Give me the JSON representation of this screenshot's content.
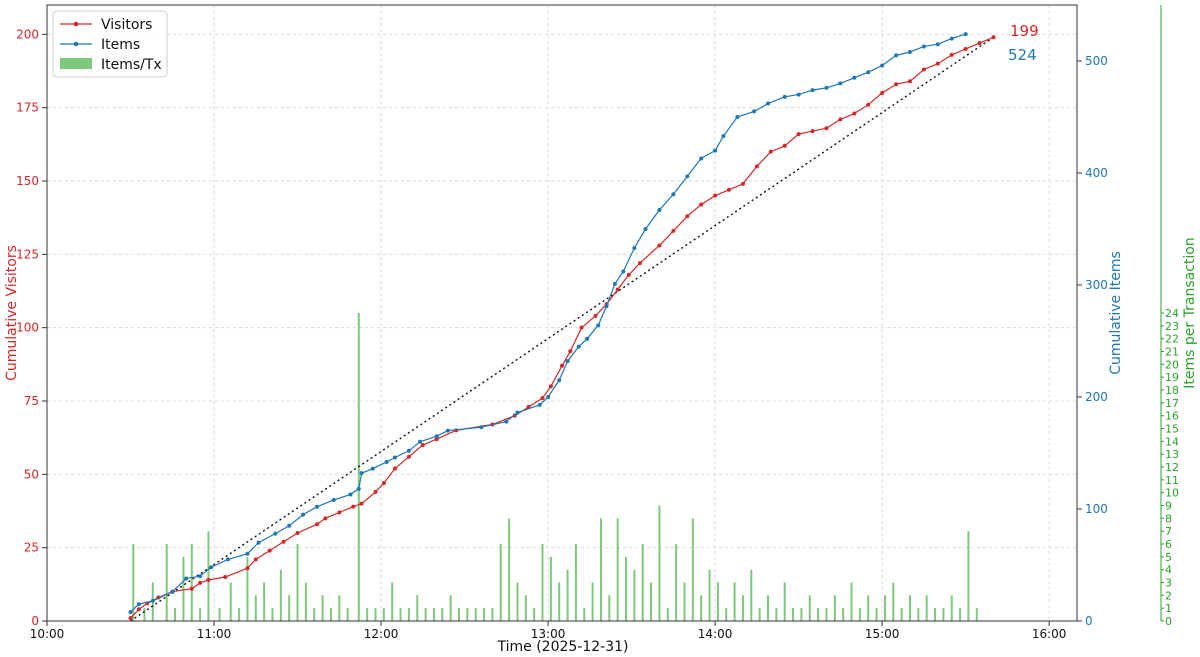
{
  "chart_data": {
    "type": "line",
    "x_axis": {
      "label": "Time (2025-12-31)",
      "range": [
        "10:00",
        "16:10"
      ],
      "ticks": [
        "10:00",
        "11:00",
        "12:00",
        "13:00",
        "14:00",
        "15:00",
        "16:00"
      ],
      "grid": true
    },
    "y_axes": {
      "left": {
        "label": "Cumulative Visitors",
        "range": [
          0,
          210
        ],
        "ticks": [
          0,
          25,
          50,
          75,
          100,
          125,
          150,
          175,
          200
        ],
        "color": "#d62728"
      },
      "right": {
        "label": "Cumulative Items",
        "range": [
          0,
          550
        ],
        "ticks": [
          0,
          100,
          200,
          300,
          400,
          500
        ],
        "color": "#1f77b4"
      },
      "far_right": {
        "label": "Items per Transaction",
        "range": [
          0,
          48
        ],
        "ticks": [
          0,
          1,
          2,
          3,
          4,
          5,
          6,
          7,
          8,
          9,
          10,
          11,
          12,
          13,
          14,
          15,
          16,
          17,
          18,
          19,
          20,
          21,
          22,
          23,
          24
        ],
        "color": "#2ca02c"
      }
    },
    "legend": {
      "position": "top-left",
      "entries": [
        {
          "label": "Visitors",
          "color": "#d62728",
          "kind": "line-marker"
        },
        {
          "label": "Items",
          "color": "#1f77b4",
          "kind": "line-marker"
        },
        {
          "label": "Items/Tx",
          "color": "#7cc87c",
          "kind": "bar"
        }
      ]
    },
    "end_labels": {
      "visitors": "199",
      "items": "524"
    },
    "series": [
      {
        "name": "Visitors",
        "axis": "left",
        "color": "#d62728",
        "points": [
          [
            "10:30",
            1
          ],
          [
            "10:33",
            4
          ],
          [
            "10:36",
            6
          ],
          [
            "10:40",
            8
          ],
          [
            "10:45",
            10
          ],
          [
            "10:52",
            11
          ],
          [
            "10:55",
            13
          ],
          [
            "10:58",
            14
          ],
          [
            "11:04",
            15
          ],
          [
            "11:12",
            18
          ],
          [
            "11:15",
            21
          ],
          [
            "11:20",
            24
          ],
          [
            "11:25",
            27
          ],
          [
            "11:30",
            30
          ],
          [
            "11:37",
            33
          ],
          [
            "11:40",
            35
          ],
          [
            "11:45",
            37
          ],
          [
            "11:50",
            39
          ],
          [
            "11:53",
            40
          ],
          [
            "11:58",
            44
          ],
          [
            "12:01",
            47
          ],
          [
            "12:05",
            52
          ],
          [
            "12:10",
            56
          ],
          [
            "12:15",
            60
          ],
          [
            "12:20",
            62
          ],
          [
            "12:27",
            65
          ],
          [
            "12:40",
            67
          ],
          [
            "12:48",
            70
          ],
          [
            "12:53",
            73
          ],
          [
            "12:58",
            76
          ],
          [
            "13:01",
            80
          ],
          [
            "13:05",
            87
          ],
          [
            "13:08",
            92
          ],
          [
            "13:12",
            100
          ],
          [
            "13:17",
            104
          ],
          [
            "13:21",
            108
          ],
          [
            "13:25",
            113
          ],
          [
            "13:29",
            118
          ],
          [
            "13:33",
            122
          ],
          [
            "13:40",
            128
          ],
          [
            "13:45",
            133
          ],
          [
            "13:50",
            138
          ],
          [
            "13:55",
            142
          ],
          [
            "14:00",
            145
          ],
          [
            "14:05",
            147
          ],
          [
            "14:10",
            149
          ],
          [
            "14:15",
            155
          ],
          [
            "14:20",
            160
          ],
          [
            "14:25",
            162
          ],
          [
            "14:30",
            166
          ],
          [
            "14:35",
            167
          ],
          [
            "14:40",
            168
          ],
          [
            "14:45",
            171
          ],
          [
            "14:50",
            173
          ],
          [
            "14:55",
            176
          ],
          [
            "15:00",
            180
          ],
          [
            "15:05",
            183
          ],
          [
            "15:10",
            184
          ],
          [
            "15:15",
            188
          ],
          [
            "15:20",
            190
          ],
          [
            "15:25",
            193
          ],
          [
            "15:30",
            195
          ],
          [
            "15:35",
            197
          ],
          [
            "15:40",
            199
          ]
        ]
      },
      {
        "name": "Items",
        "axis": "right",
        "color": "#1f77b4",
        "points": [
          [
            "10:30",
            8
          ],
          [
            "10:33",
            15
          ],
          [
            "10:38",
            18
          ],
          [
            "10:45",
            26
          ],
          [
            "10:50",
            38
          ],
          [
            "10:55",
            40
          ],
          [
            "10:59",
            48
          ],
          [
            "11:05",
            55
          ],
          [
            "11:12",
            60
          ],
          [
            "11:16",
            70
          ],
          [
            "11:22",
            78
          ],
          [
            "11:27",
            85
          ],
          [
            "11:32",
            95
          ],
          [
            "11:37",
            102
          ],
          [
            "11:43",
            108
          ],
          [
            "11:49",
            113
          ],
          [
            "11:52",
            118
          ],
          [
            "11:53",
            132
          ],
          [
            "11:57",
            136
          ],
          [
            "12:02",
            142
          ],
          [
            "12:05",
            146
          ],
          [
            "12:10",
            152
          ],
          [
            "12:14",
            160
          ],
          [
            "12:20",
            165
          ],
          [
            "12:24",
            170
          ],
          [
            "12:36",
            173
          ],
          [
            "12:45",
            178
          ],
          [
            "12:49",
            186
          ],
          [
            "12:57",
            193
          ],
          [
            "13:00",
            200
          ],
          [
            "13:04",
            215
          ],
          [
            "13:07",
            232
          ],
          [
            "13:11",
            245
          ],
          [
            "13:14",
            252
          ],
          [
            "13:18",
            264
          ],
          [
            "13:21",
            281
          ],
          [
            "13:24",
            301
          ],
          [
            "13:27",
            312
          ],
          [
            "13:31",
            333
          ],
          [
            "13:35",
            350
          ],
          [
            "13:40",
            367
          ],
          [
            "13:45",
            381
          ],
          [
            "13:50",
            397
          ],
          [
            "13:55",
            413
          ],
          [
            "14:00",
            420
          ],
          [
            "14:03",
            433
          ],
          [
            "14:08",
            450
          ],
          [
            "14:14",
            455
          ],
          [
            "14:19",
            462
          ],
          [
            "14:25",
            468
          ],
          [
            "14:30",
            470
          ],
          [
            "14:35",
            474
          ],
          [
            "14:40",
            476
          ],
          [
            "14:45",
            480
          ],
          [
            "14:50",
            485
          ],
          [
            "14:55",
            490
          ],
          [
            "15:00",
            496
          ],
          [
            "15:05",
            505
          ],
          [
            "15:10",
            508
          ],
          [
            "15:15",
            513
          ],
          [
            "15:20",
            515
          ],
          [
            "15:25",
            520
          ],
          [
            "15:30",
            524
          ]
        ]
      }
    ],
    "trend_line": {
      "style": "dotted",
      "color": "#111111",
      "axis": "left",
      "from": [
        "10:30",
        0
      ],
      "to": [
        "15:40",
        199
      ]
    },
    "bars": {
      "name": "Items/Tx",
      "axis": "far_right",
      "color": "#7cc87c",
      "values": [
        [
          "10:31",
          6
        ],
        [
          "10:35",
          1
        ],
        [
          "10:38",
          3
        ],
        [
          "10:43",
          6
        ],
        [
          "10:46",
          1
        ],
        [
          "10:49",
          5
        ],
        [
          "10:52",
          6
        ],
        [
          "10:55",
          1
        ],
        [
          "10:58",
          7
        ],
        [
          "11:02",
          1
        ],
        [
          "11:06",
          3
        ],
        [
          "11:09",
          1
        ],
        [
          "11:12",
          5
        ],
        [
          "11:15",
          2
        ],
        [
          "11:18",
          3
        ],
        [
          "11:21",
          1
        ],
        [
          "11:24",
          4
        ],
        [
          "11:27",
          2
        ],
        [
          "11:30",
          6
        ],
        [
          "11:33",
          3
        ],
        [
          "11:36",
          1
        ],
        [
          "11:39",
          2
        ],
        [
          "11:42",
          1
        ],
        [
          "11:45",
          2
        ],
        [
          "11:48",
          1
        ],
        [
          "11:52",
          24
        ],
        [
          "11:55",
          1
        ],
        [
          "11:58",
          1
        ],
        [
          "12:01",
          1
        ],
        [
          "12:04",
          3
        ],
        [
          "12:07",
          1
        ],
        [
          "12:10",
          1
        ],
        [
          "12:13",
          2
        ],
        [
          "12:16",
          1
        ],
        [
          "12:19",
          1
        ],
        [
          "12:22",
          1
        ],
        [
          "12:25",
          2
        ],
        [
          "12:28",
          1
        ],
        [
          "12:31",
          1
        ],
        [
          "12:34",
          1
        ],
        [
          "12:37",
          1
        ],
        [
          "12:40",
          1
        ],
        [
          "12:43",
          6
        ],
        [
          "12:46",
          8
        ],
        [
          "12:49",
          3
        ],
        [
          "12:52",
          2
        ],
        [
          "12:55",
          1
        ],
        [
          "12:58",
          6
        ],
        [
          "13:01",
          5
        ],
        [
          "13:04",
          3
        ],
        [
          "13:07",
          4
        ],
        [
          "13:10",
          6
        ],
        [
          "13:13",
          1
        ],
        [
          "13:16",
          3
        ],
        [
          "13:19",
          8
        ],
        [
          "13:22",
          2
        ],
        [
          "13:25",
          8
        ],
        [
          "13:28",
          5
        ],
        [
          "13:31",
          4
        ],
        [
          "13:34",
          6
        ],
        [
          "13:37",
          3
        ],
        [
          "13:40",
          9
        ],
        [
          "13:43",
          1
        ],
        [
          "13:46",
          6
        ],
        [
          "13:49",
          3
        ],
        [
          "13:52",
          8
        ],
        [
          "13:55",
          2
        ],
        [
          "13:58",
          4
        ],
        [
          "14:01",
          3
        ],
        [
          "14:04",
          1
        ],
        [
          "14:07",
          3
        ],
        [
          "14:10",
          2
        ],
        [
          "14:13",
          4
        ],
        [
          "14:16",
          1
        ],
        [
          "14:19",
          2
        ],
        [
          "14:22",
          1
        ],
        [
          "14:25",
          3
        ],
        [
          "14:28",
          1
        ],
        [
          "14:31",
          1
        ],
        [
          "14:34",
          2
        ],
        [
          "14:37",
          1
        ],
        [
          "14:40",
          1
        ],
        [
          "14:43",
          2
        ],
        [
          "14:46",
          1
        ],
        [
          "14:49",
          3
        ],
        [
          "14:52",
          1
        ],
        [
          "14:55",
          2
        ],
        [
          "14:58",
          1
        ],
        [
          "15:01",
          2
        ],
        [
          "15:04",
          3
        ],
        [
          "15:07",
          1
        ],
        [
          "15:10",
          2
        ],
        [
          "15:13",
          1
        ],
        [
          "15:16",
          2
        ],
        [
          "15:19",
          1
        ],
        [
          "15:22",
          1
        ],
        [
          "15:25",
          2
        ],
        [
          "15:28",
          1
        ],
        [
          "15:31",
          7
        ],
        [
          "15:34",
          1
        ]
      ]
    }
  }
}
